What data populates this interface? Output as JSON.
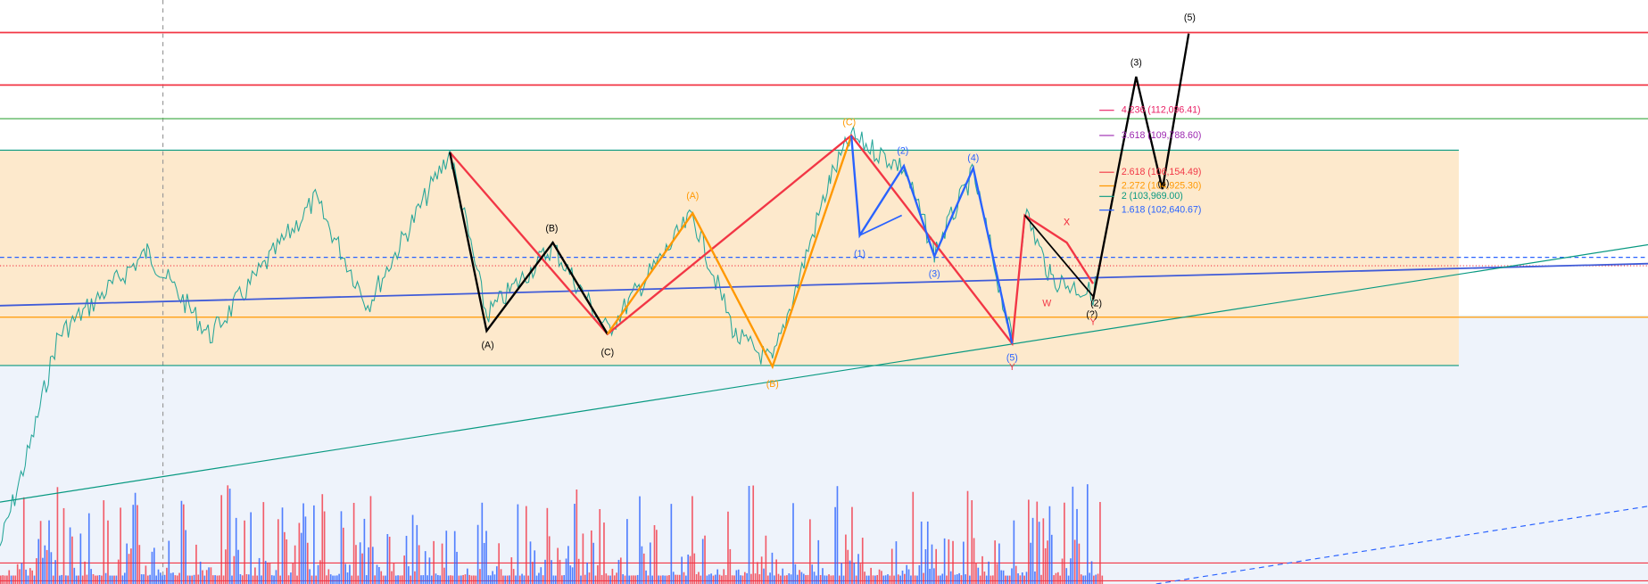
{
  "fib_levels": [
    {
      "label": "4.236 (112,096.41)",
      "color": "#e91e63"
    },
    {
      "label": "3.618 (109,788.60)",
      "color": "#9c27b0"
    },
    {
      "label": "2.618 (106,154.49)",
      "color": "#f23645"
    },
    {
      "label": "2.272 (104,925.30)",
      "color": "#ff9800"
    },
    {
      "label": "2 (103,969.00)",
      "color": "#089981"
    },
    {
      "label": "1.618 (102,640.67)",
      "color": "#2962ff"
    }
  ],
  "wave_labels": [
    {
      "label": "(5)",
      "color": "#000"
    },
    {
      "label": "(3)",
      "color": "#000"
    },
    {
      "label": "(4)",
      "color": "#000"
    },
    {
      "label": "X",
      "color": "#f23645"
    },
    {
      "label": "(C)",
      "color": "#ff9800"
    },
    {
      "label": "(2)",
      "color": "#2962ff"
    },
    {
      "label": "(4)",
      "color": "#2962ff"
    },
    {
      "label": "(A)",
      "color": "#ff9800"
    },
    {
      "label": "(B)",
      "color": "#000"
    },
    {
      "label": "(A)",
      "color": "#000"
    },
    {
      "label": "(C)",
      "color": "#000"
    },
    {
      "label": "(B)",
      "color": "#ff9800"
    },
    {
      "label": "(1)",
      "color": "#2962ff"
    },
    {
      "label": "(3)",
      "color": "#2962ff"
    },
    {
      "label": "(5)",
      "color": "#2962ff"
    },
    {
      "label": "Y",
      "color": "#f23645"
    },
    {
      "label": "W",
      "color": "#f23645"
    },
    {
      "label": "X",
      "color": "#f23645"
    },
    {
      "label": "Y",
      "color": "#f23645"
    },
    {
      "label": "(2)",
      "color": "#000"
    },
    {
      "label": "(?)",
      "color": "#000"
    }
  ]
}
